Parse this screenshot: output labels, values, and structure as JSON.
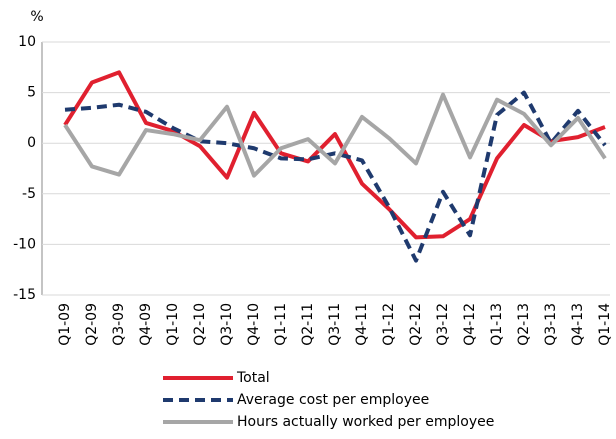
{
  "chart_data": {
    "type": "line",
    "unit_label": "%",
    "categories": [
      "Q1-09",
      "Q2-09",
      "Q3-09",
      "Q4-09",
      "Q1-10",
      "Q2-10",
      "Q3-10",
      "Q4-10",
      "Q1-11",
      "Q2-11",
      "Q3-11",
      "Q4-11",
      "Q1-12",
      "Q2-12",
      "Q3-12",
      "Q4-12",
      "Q1-13",
      "Q2-13",
      "Q3-13",
      "Q4-13",
      "Q1-14"
    ],
    "series": [
      {
        "name": "Total",
        "color": "#e0202f",
        "dashed": false,
        "values": [
          1.8,
          6,
          7,
          2,
          1.2,
          -0.3,
          -3.4,
          3,
          -1,
          -1.8,
          0.9,
          -4,
          -6.5,
          -9.3,
          -9.2,
          -7.5,
          -1.5,
          1.8,
          0.2,
          0.6,
          1.6
        ]
      },
      {
        "name": "Average cost per employee",
        "color": "#1f3a6e",
        "dashed": true,
        "values": [
          3.3,
          3.5,
          3.8,
          3.1,
          1.5,
          0.2,
          0,
          -0.5,
          -1.5,
          -1.6,
          -1,
          -1.7,
          -6.3,
          -11.6,
          -4.8,
          -9.1,
          2.8,
          5,
          0,
          3.2,
          -0.2
        ]
      },
      {
        "name": "Hours actually worked per employee",
        "color": "#a6a6a6",
        "dashed": false,
        "values": [
          1.8,
          -2.3,
          -3.1,
          1.3,
          0.9,
          0.3,
          3.6,
          -3.2,
          -0.5,
          0.4,
          -2,
          2.6,
          0.5,
          -2,
          4.8,
          -1.4,
          4.3,
          2.9,
          -0.2,
          2.5,
          -1.5
        ]
      }
    ],
    "ylim": [
      -15,
      10
    ],
    "yticks": [
      -15,
      -10,
      -5,
      0,
      5,
      10
    ],
    "grid": true
  }
}
